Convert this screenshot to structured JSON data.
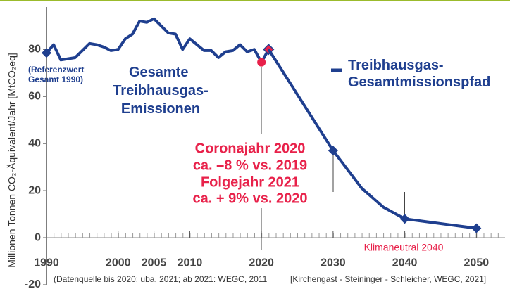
{
  "chart_data": {
    "type": "line",
    "y_label": "Millionen Tonnen CO₂-Äquivalent/Jahr [MtCO₂eq]",
    "xlim": [
      1990,
      2054
    ],
    "ylim": [
      -20,
      98
    ],
    "xticks": [
      1990,
      2000,
      2005,
      2010,
      2020,
      2030,
      2040,
      2050
    ],
    "yticks": [
      -20,
      0,
      20,
      40,
      60,
      80
    ],
    "grid": false,
    "series": [
      {
        "name": "Gesamte Treibhausgas-Emissionen",
        "color": "#1f3f8f",
        "x": [
          1990,
          1991,
          1992,
          1993,
          1994,
          1995,
          1996,
          1997,
          1998,
          1999,
          2000,
          2001,
          2002,
          2003,
          2004,
          2005,
          2006,
          2007,
          2008,
          2009,
          2010,
          2011,
          2012,
          2013,
          2014,
          2015,
          2016,
          2017,
          2018,
          2019,
          2020,
          2021
        ],
        "values": [
          78.5,
          82,
          75.5,
          76,
          76.5,
          79.5,
          82.5,
          82,
          81,
          79.5,
          80,
          84.5,
          86.5,
          92,
          91.5,
          93,
          90,
          87,
          86.5,
          80,
          84.5,
          82,
          79.5,
          79.5,
          76.5,
          79,
          79.5,
          82,
          79,
          80,
          74.5,
          80
        ],
        "markers": [
          {
            "index": 0,
            "shape": "diamond",
            "color": "#1f3f8f"
          },
          {
            "index": 30,
            "shape": "circle",
            "color": "#e8214a"
          },
          {
            "index": 31,
            "shape": "diamond",
            "color": "#e8214a"
          }
        ]
      },
      {
        "name": "Treibhausgas-Gesamtmissionspfad",
        "color": "#1f3f8f",
        "x": [
          2021,
          2030,
          2034,
          2037,
          2040,
          2050
        ],
        "values": [
          80,
          37,
          21,
          13,
          8,
          4
        ],
        "markers": [
          {
            "index": 1,
            "shape": "diamond",
            "color": "#1f3f8f"
          },
          {
            "index": 4,
            "shape": "diamond",
            "color": "#1f3f8f"
          },
          {
            "index": 5,
            "shape": "diamond",
            "color": "#1f3f8f"
          }
        ]
      }
    ],
    "annotations": [
      {
        "lines": [
          "(Referenzwert",
          "Gesamt 1990)"
        ]
      },
      {
        "lines": [
          "Coronajahr 2020",
          "ca. –8 % vs. 2019",
          "Folgejahr 2021",
          "ca. + 9% vs. 2020"
        ]
      },
      {
        "lines": [
          "Klimaneutral 2040"
        ]
      }
    ],
    "sources": [
      "(Datenquelle bis 2020: uba, 2021; ab 2021: WEGC, 2011",
      "[Kirchengast - Steininger - Schleicher, WEGC, 2021]"
    ]
  }
}
